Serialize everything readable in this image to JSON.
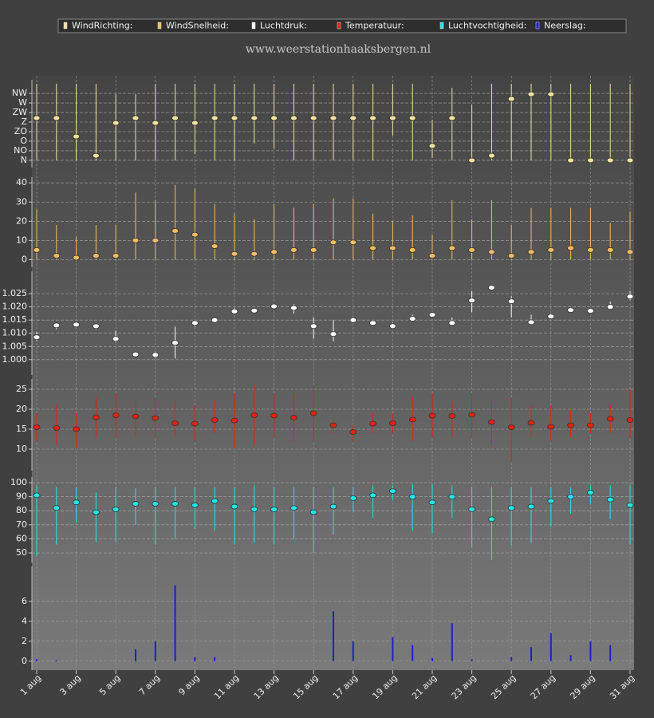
{
  "header": {
    "site": "www.weerstationhaaksbergen.nl"
  },
  "chart_data": [
    {
      "type": "range",
      "name": "WindRichting:",
      "color": "#f3e3a0",
      "values": [
        199,
        199,
        112,
        22,
        176,
        199,
        176,
        199,
        176,
        199,
        199,
        199,
        199,
        199,
        199,
        199,
        199,
        199,
        199,
        199,
        68,
        199,
        0,
        22,
        289,
        311,
        311,
        0,
        0,
        0,
        0
      ],
      "low": [
        0,
        0,
        0,
        0,
        0,
        0,
        0,
        0,
        30,
        0,
        0,
        79,
        56,
        0,
        0,
        0,
        0,
        0,
        116,
        0,
        11,
        0,
        0,
        0,
        0,
        0,
        0,
        0,
        0,
        0,
        0
      ],
      "high": [
        360,
        360,
        360,
        360,
        311,
        311,
        360,
        360,
        360,
        360,
        360,
        360,
        360,
        360,
        360,
        360,
        360,
        360,
        360,
        360,
        191,
        341,
        262,
        360,
        360,
        360,
        360,
        360,
        360,
        360,
        360
      ],
      "ylim": [
        -34,
        379
      ],
      "yticks": [
        {
          "value": 0,
          "label": "N"
        },
        {
          "value": 45,
          "label": "NO"
        },
        {
          "value": 90,
          "label": "O"
        },
        {
          "value": 135,
          "label": "ZO"
        },
        {
          "value": 180,
          "label": "Z"
        },
        {
          "value": 225,
          "label": "ZW"
        },
        {
          "value": 270,
          "label": "W"
        },
        {
          "value": 315,
          "label": "NW"
        }
      ]
    },
    {
      "type": "range",
      "name": "WindSnelheid:",
      "color": "#f2bd62",
      "values": [
        5,
        2,
        1,
        2,
        2,
        10,
        10,
        15,
        13,
        7,
        3,
        3,
        4,
        5,
        5,
        9,
        9,
        6,
        6,
        5,
        2,
        6,
        5,
        4,
        2,
        4,
        5,
        6,
        5,
        5,
        4
      ],
      "low": [
        0,
        0,
        0,
        0,
        0,
        0,
        0,
        0,
        0,
        0,
        0,
        0,
        0,
        0,
        0,
        0,
        0,
        0,
        0,
        0,
        0,
        0,
        0,
        0,
        0,
        0,
        0,
        0,
        0,
        0,
        0
      ],
      "high": [
        26,
        18,
        12,
        18,
        18,
        35,
        31,
        39,
        37,
        29,
        24,
        21,
        29,
        27,
        29,
        32,
        32,
        24,
        20,
        23,
        13,
        31,
        21,
        31,
        18,
        27,
        27,
        27,
        27,
        19,
        25
      ],
      "ylim": [
        -4,
        43
      ],
      "yticks": [
        0,
        10,
        20,
        30,
        40
      ]
    },
    {
      "type": "range",
      "name": "Luchtdruk:",
      "color": "#ffffff",
      "values": [
        1008.5,
        1013,
        1013.3,
        1012.7,
        1007.9,
        1002,
        1001.8,
        1006.4,
        1013.9,
        1015,
        1018.3,
        1018.6,
        1020.2,
        1019.6,
        1012.7,
        1009.7,
        1015,
        1013.9,
        1012.7,
        1015.5,
        1017,
        1013.9,
        1022.4,
        1027.3,
        1022.1,
        1014.2,
        1016.4,
        1018.8,
        1018.5,
        1020,
        1023.9
      ],
      "low": [
        1007,
        1011.5,
        1012.5,
        1011.5,
        1006.5,
        1001,
        1000.5,
        1000.5,
        1012.5,
        1014.5,
        1017.5,
        1018,
        1019.5,
        1017.5,
        1008,
        1007,
        1014.5,
        1013,
        1012,
        1014.5,
        1016,
        1013,
        1018,
        1026.5,
        1016,
        1013.5,
        1016,
        1018,
        1018,
        1019,
        1022.5
      ],
      "high": [
        1010.5,
        1014,
        1014.2,
        1013.5,
        1011,
        1003,
        1003,
        1012.5,
        1015,
        1016,
        1019.5,
        1019.5,
        1021,
        1021,
        1016,
        1015,
        1016,
        1015,
        1014,
        1017,
        1018,
        1016,
        1026,
        1028,
        1024,
        1017,
        1017.5,
        1020,
        1019.5,
        1022,
        1026
      ],
      "ylim": [
        994.2,
        1033.5
      ],
      "yticks": [
        {
          "value": 1000,
          "label": "1.000"
        },
        {
          "value": 1005,
          "label": "1.005"
        },
        {
          "value": 1010,
          "label": "1.010"
        },
        {
          "value": 1015,
          "label": "1.015"
        },
        {
          "value": 1020,
          "label": "1.020"
        },
        {
          "value": 1025,
          "label": "1.025"
        }
      ]
    },
    {
      "type": "range",
      "name": "Temperatuur:",
      "color": "#e8200e",
      "values": [
        15.5,
        15.3,
        15,
        18,
        18.5,
        18.2,
        17.8,
        16.5,
        16.4,
        17.3,
        17.2,
        18.5,
        18.4,
        17.9,
        19,
        16,
        14.3,
        16.4,
        16.5,
        17.4,
        18.4,
        18.3,
        18.6,
        16.8,
        15.5,
        16.6,
        15.6,
        16,
        16,
        17.6,
        17.3
      ],
      "low": [
        12,
        11,
        10,
        13,
        13,
        13,
        13,
        13,
        12,
        14,
        10,
        11,
        13,
        12,
        12,
        14,
        12,
        14,
        14,
        12,
        13,
        13,
        13,
        11,
        7,
        13,
        12,
        13,
        14,
        14,
        13
      ],
      "high": [
        19,
        21,
        19,
        23,
        24,
        22,
        23,
        22,
        21,
        22,
        24,
        26,
        24,
        24,
        26,
        18,
        16,
        19,
        19,
        23,
        24,
        22,
        24,
        22,
        23,
        21,
        21,
        20,
        19,
        21,
        25
      ],
      "ylim": [
        4.6,
        27.6
      ],
      "yticks": [
        10,
        15,
        20,
        25
      ]
    },
    {
      "type": "range",
      "name": "Luchtvochtigheid:",
      "color": "#22e6e6",
      "values": [
        91,
        82,
        86,
        79,
        81,
        85,
        85,
        85,
        84,
        87,
        83,
        81,
        81,
        82,
        79,
        83,
        89,
        91,
        94,
        90,
        86,
        90,
        81,
        74,
        82,
        83,
        87,
        90,
        93,
        88,
        84
      ],
      "low": [
        48,
        56,
        72,
        58,
        58,
        70,
        56,
        60,
        67,
        66,
        56,
        57,
        56,
        60,
        50,
        63,
        79,
        75,
        88,
        66,
        64,
        75,
        54,
        45,
        55,
        57,
        69,
        78,
        85,
        74,
        56
      ],
      "high": [
        98,
        97,
        97,
        93,
        97,
        96,
        97,
        97,
        97,
        97,
        97,
        98,
        97,
        97,
        97,
        97,
        97,
        98,
        98,
        99,
        99,
        98,
        97,
        97,
        97,
        97,
        97,
        97,
        98,
        98,
        98
      ],
      "ylim": [
        43.2,
        104
      ],
      "yticks": [
        50,
        60,
        70,
        80,
        90,
        100
      ]
    },
    {
      "type": "bar",
      "name": "Neerslag:",
      "color": "#1a22c8",
      "values": [
        0.2,
        0.1,
        0,
        0,
        0,
        1.2,
        2,
        7.6,
        0.4,
        0.4,
        0,
        0,
        0,
        0,
        0,
        5,
        2,
        0,
        2.4,
        1.6,
        0.3,
        3.8,
        0.2,
        0,
        0.4,
        1.4,
        2.8,
        0.6,
        2,
        1.6,
        0
      ],
      "ylim": [
        -0.9,
        9.5
      ],
      "yticks": [
        0,
        2,
        4,
        6
      ],
      "categories": [
        "1 aug",
        null,
        "3 aug",
        null,
        "5 aug",
        null,
        "7 aug",
        null,
        "9 aug",
        null,
        "11 aug",
        null,
        "13 aug",
        null,
        "15 aug",
        null,
        "17 aug",
        null,
        "19 aug",
        null,
        "21 aug",
        null,
        "23 aug",
        null,
        "25 aug",
        null,
        "27 aug",
        null,
        "29 aug",
        null,
        "31 aug"
      ]
    }
  ]
}
